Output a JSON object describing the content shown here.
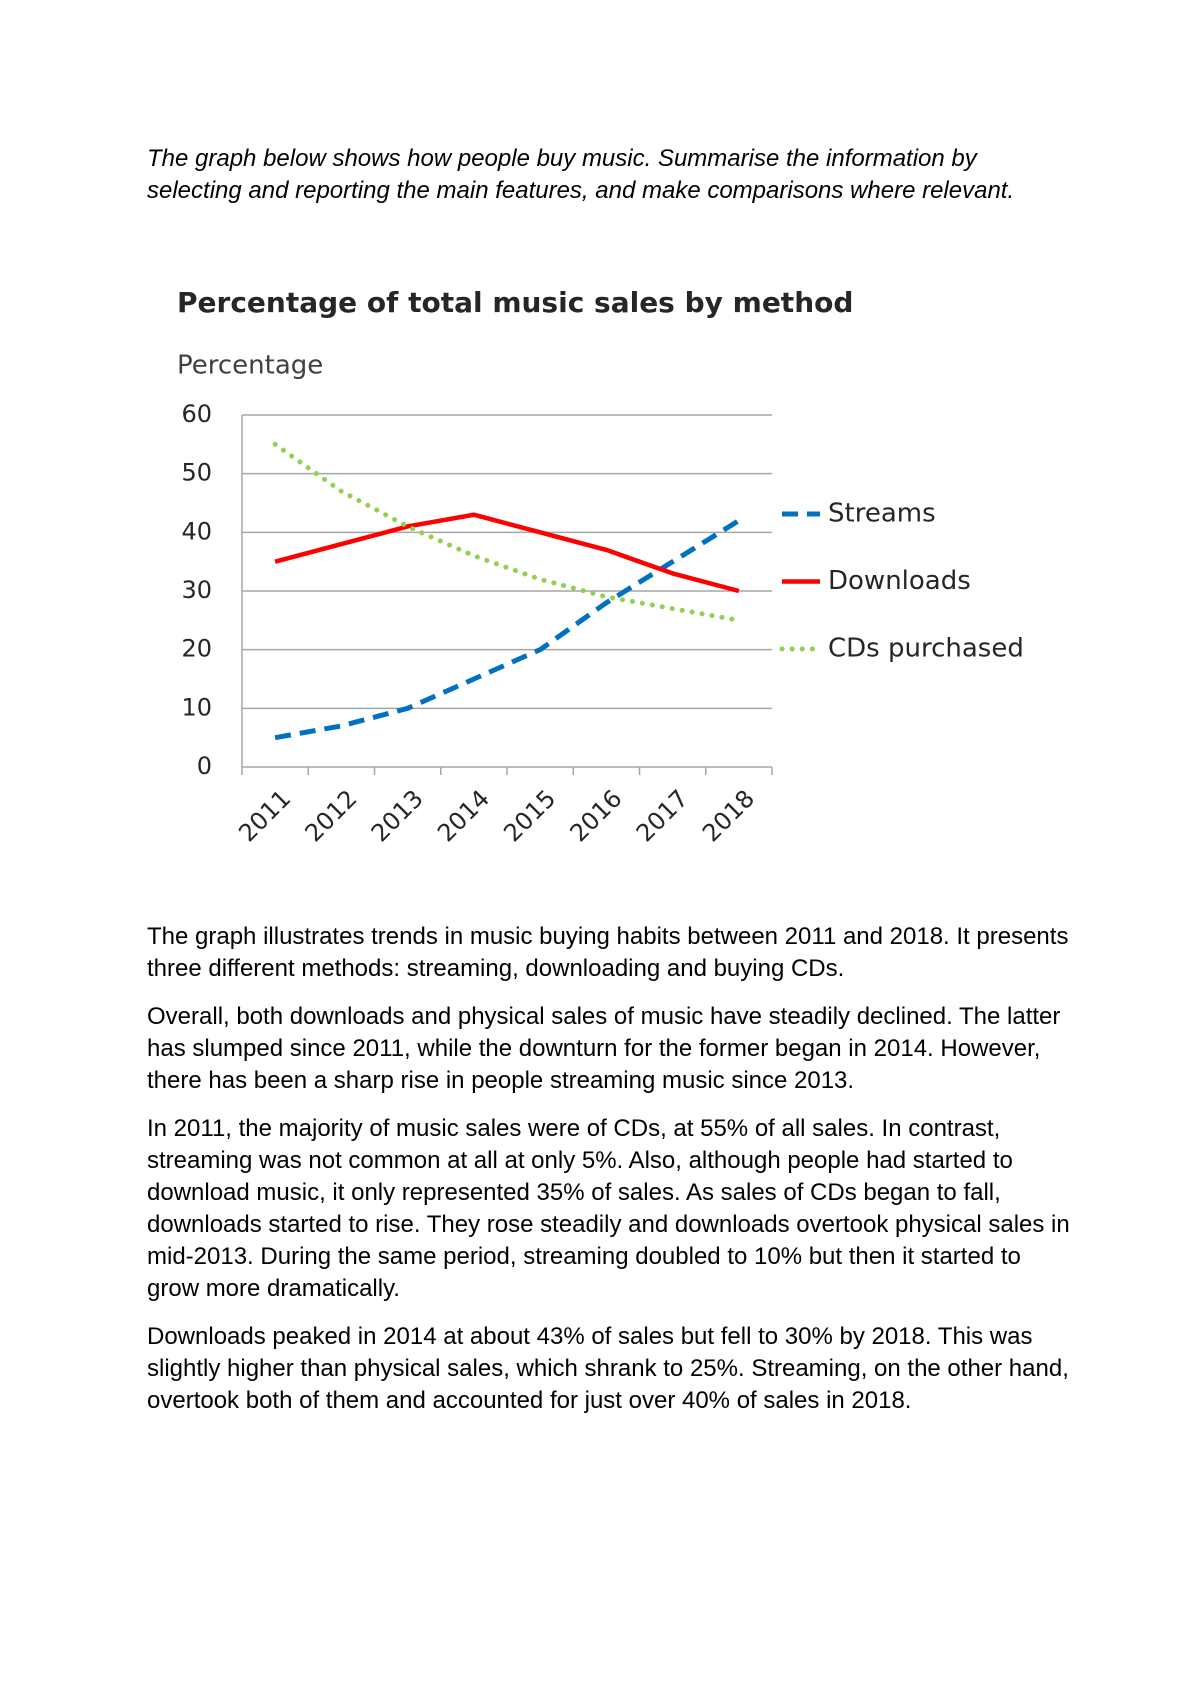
{
  "prompt": "The graph below shows how people buy music. Summarise the information by selecting and reporting the main features, and make comparisons where relevant.",
  "chart_data": {
    "type": "line",
    "title": "Percentage of total music sales by method",
    "y_label": "Percentage",
    "categories": [
      "2011",
      "2012",
      "2013",
      "2014",
      "2015",
      "2016",
      "2017",
      "2018"
    ],
    "series": [
      {
        "name": "Streams",
        "color": "#0070c0",
        "style": "dashed",
        "values": [
          5,
          7,
          10,
          15,
          20,
          28,
          35,
          42
        ]
      },
      {
        "name": "Downloads",
        "color": "#ff0000",
        "style": "solid",
        "values": [
          35,
          38,
          41,
          43,
          40,
          37,
          33,
          30
        ]
      },
      {
        "name": "CDs purchased",
        "color": "#92d050",
        "style": "dotted",
        "values": [
          55,
          47,
          41,
          36,
          32,
          29,
          27,
          25
        ]
      }
    ],
    "ylim": [
      0,
      60
    ],
    "yticks": [
      0,
      10,
      20,
      30,
      40,
      50,
      60
    ],
    "grid": true,
    "legend": "right"
  },
  "paragraphs": [
    "The graph illustrates trends in music buying habits between 2011 and 2018. It presents three different methods: streaming, downloading and buying CDs.",
    "Overall, both downloads and physical sales of music have steadily declined. The latter has slumped since 2011, while the downturn for the former began in 2014. However, there has been a sharp rise in people streaming music since 2013.",
    "In 2011, the majority of music sales were of CDs, at 55% of all sales. In contrast, streaming was not common at all at only 5%. Also, although people had started to download music, it only represented 35% of sales. As sales of CDs began to fall, downloads started to rise. They rose steadily and downloads overtook physical sales in mid-2013. During the same period, streaming doubled to 10% but then it started to grow more dramatically.",
    "Downloads peaked in 2014 at about 43% of sales but fell to 30% by 2018. This was slightly higher than physical sales, which shrank to 25%. Streaming, on the other hand, overtook both of them and accounted for just over 40% of sales in 2018."
  ]
}
